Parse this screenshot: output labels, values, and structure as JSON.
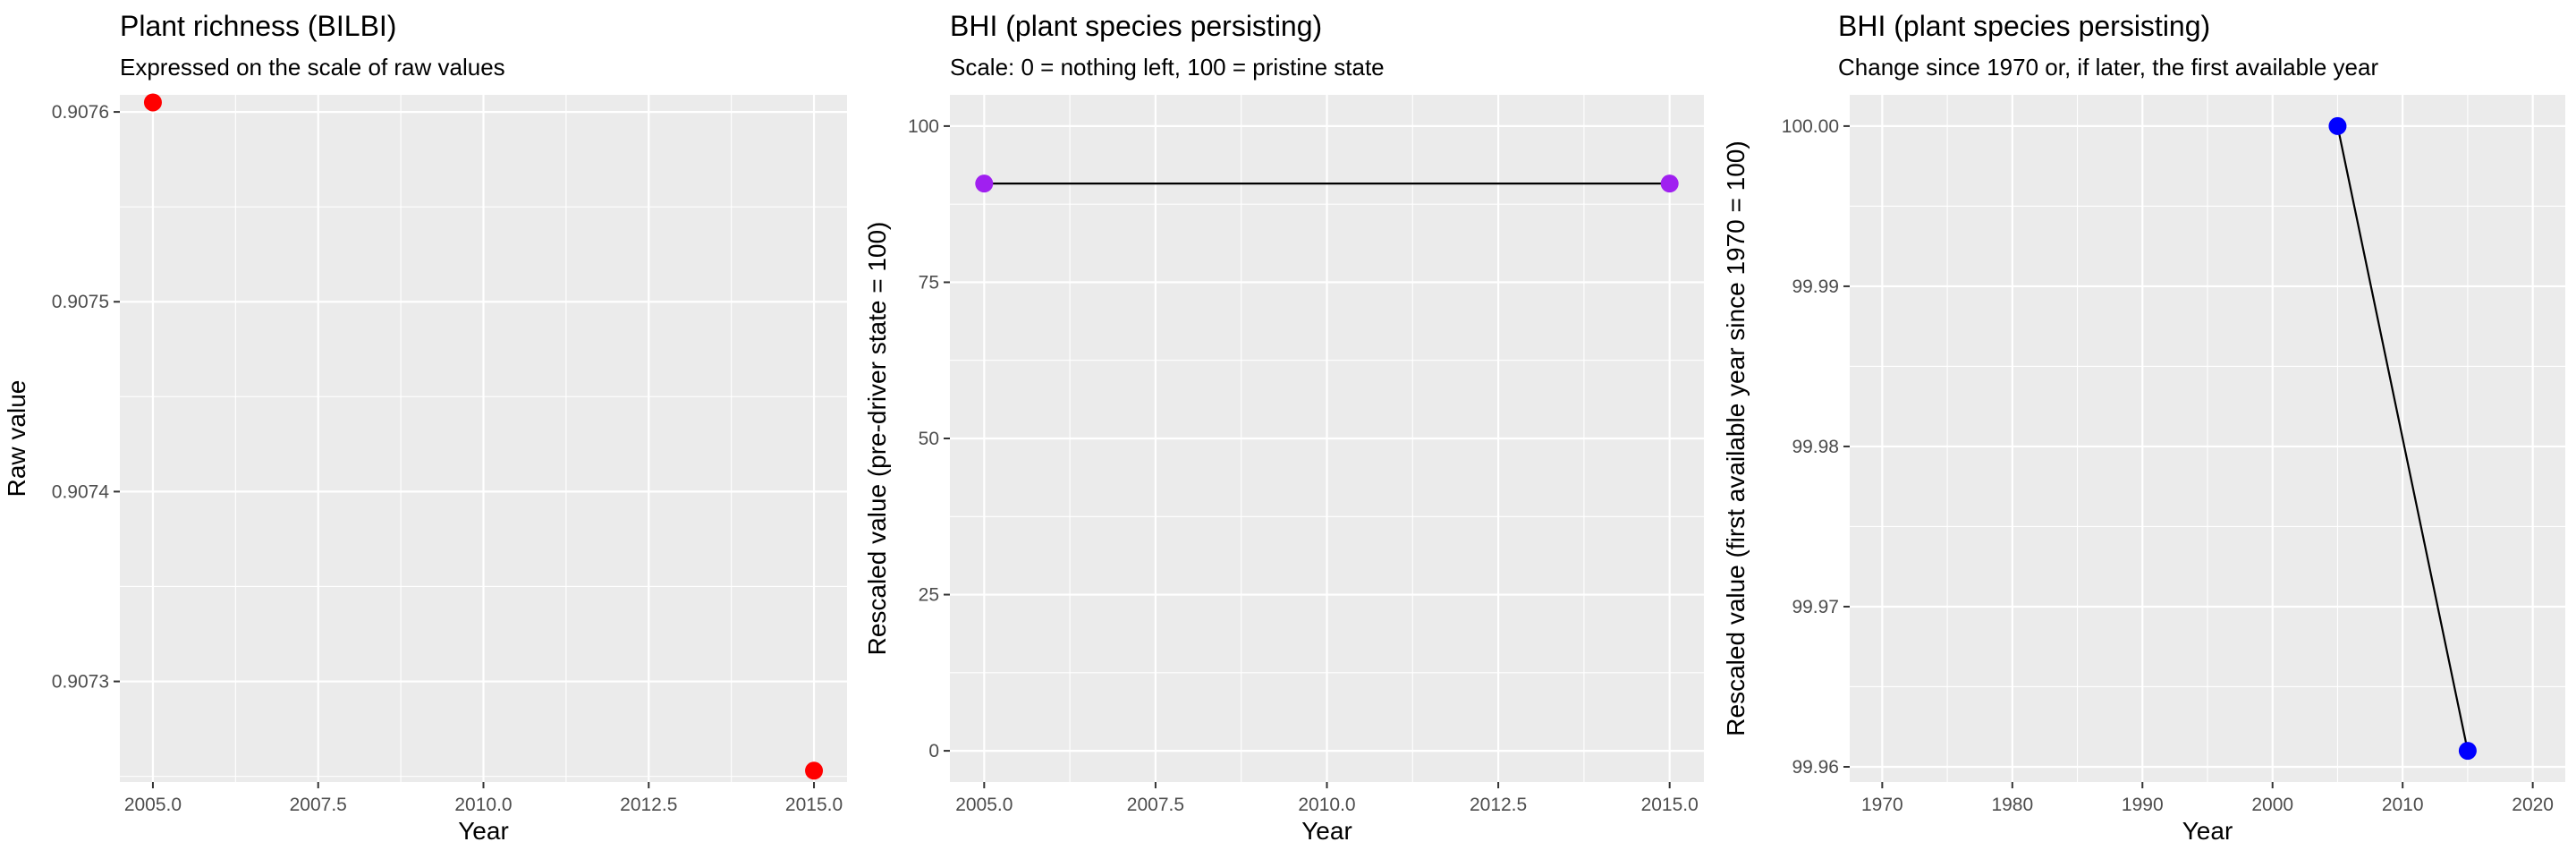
{
  "chart_data": [
    {
      "type": "scatter",
      "title": "Plant richness (BILBI)",
      "subtitle": "Expressed on the scale of raw values",
      "xlabel": "Year",
      "ylabel": "Raw value",
      "connect_points": false,
      "point_color": "#ff0000",
      "xlim": [
        2004.5,
        2015.5
      ],
      "ylim": [
        0.907247,
        0.907609
      ],
      "x_ticks": [
        2005.0,
        2007.5,
        2010.0,
        2012.5,
        2015.0
      ],
      "x_tick_labels": [
        "2005.0",
        "2007.5",
        "2010.0",
        "2012.5",
        "2015.0"
      ],
      "y_ticks": [
        0.9073,
        0.9074,
        0.9075,
        0.9076
      ],
      "y_tick_labels": [
        "0.9073",
        "0.9074",
        "0.9075",
        "0.9076"
      ],
      "grid": true,
      "series": [
        {
          "x": [
            2005,
            2015
          ],
          "y": [
            0.907605,
            0.907253
          ]
        }
      ]
    },
    {
      "type": "line",
      "title": "BHI (plant species persisting)",
      "subtitle": "Scale: 0 = nothing left, 100 = pristine state",
      "xlabel": "Year",
      "ylabel": "Rescaled value (pre-driver state = 100)",
      "connect_points": true,
      "point_color": "#a020f0",
      "xlim": [
        2004.5,
        2015.5
      ],
      "ylim": [
        -5,
        105
      ],
      "x_ticks": [
        2005.0,
        2007.5,
        2010.0,
        2012.5,
        2015.0
      ],
      "x_tick_labels": [
        "2005.0",
        "2007.5",
        "2010.0",
        "2012.5",
        "2015.0"
      ],
      "y_ticks": [
        0,
        25,
        50,
        75,
        100
      ],
      "y_tick_labels": [
        "0",
        "25",
        "50",
        "75",
        "100"
      ],
      "grid": true,
      "series": [
        {
          "x": [
            2005,
            2015
          ],
          "y": [
            90.8,
            90.8
          ]
        }
      ]
    },
    {
      "type": "line",
      "title": "BHI (plant species persisting)",
      "subtitle": "Change since 1970 or, if later, the first available year",
      "xlabel": "Year",
      "ylabel": "Rescaled value (first available year since 1970 = 100)",
      "connect_points": true,
      "point_color": "#0000ff",
      "xlim": [
        1967.5,
        2022.5
      ],
      "ylim": [
        99.95905,
        100.00195
      ],
      "x_ticks": [
        1970,
        1980,
        1990,
        2000,
        2010,
        2020
      ],
      "x_tick_labels": [
        "1970",
        "1980",
        "1990",
        "2000",
        "2010",
        "2020"
      ],
      "y_ticks": [
        99.96,
        99.97,
        99.98,
        99.99,
        100.0
      ],
      "y_tick_labels": [
        "99.96",
        "99.97",
        "99.98",
        "99.99",
        "100.00"
      ],
      "grid": true,
      "series": [
        {
          "x": [
            2005,
            2015
          ],
          "y": [
            100.0,
            99.961
          ]
        }
      ]
    }
  ]
}
